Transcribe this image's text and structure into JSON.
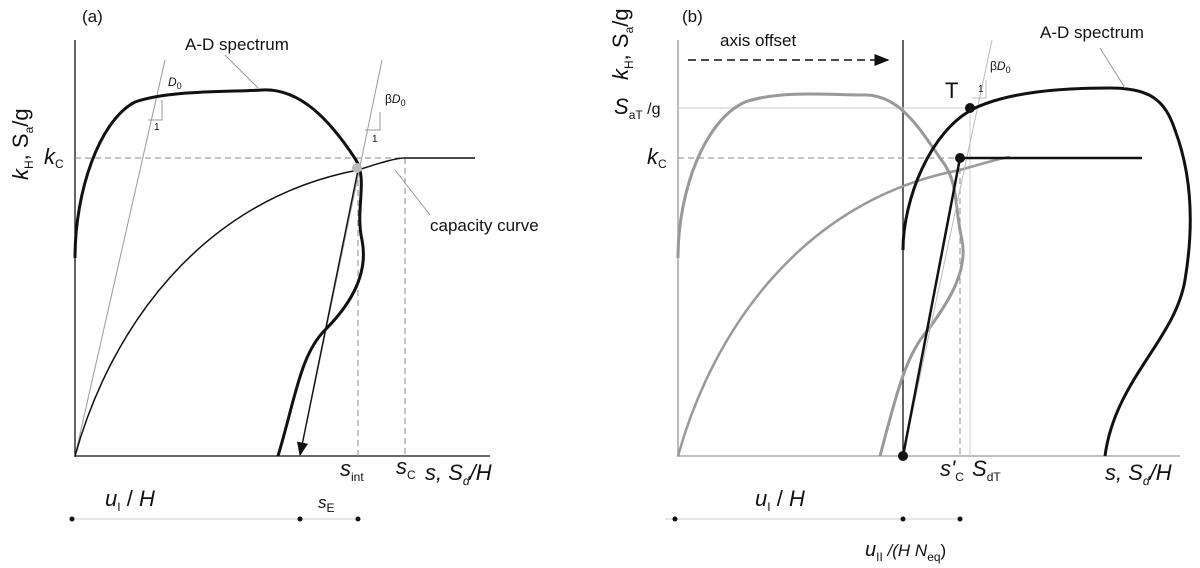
{
  "panel_a": {
    "tag": "(a)",
    "y_label": [
      "k",
      "H",
      ", S",
      "a",
      "/g"
    ],
    "spectrum_label": "A-D spectrum",
    "slope_label": [
      "D",
      "0"
    ],
    "slope_unit": "1",
    "beta_label": [
      "β",
      "D",
      "0"
    ],
    "beta_unit": "1",
    "kc_label": [
      "k",
      "C"
    ],
    "capacity_label": "capacity curve",
    "s_int": [
      "s",
      "int"
    ],
    "s_c": [
      "s",
      "C"
    ],
    "x_label": [
      "s, S",
      "d",
      "/H"
    ],
    "u_label": [
      "u",
      "I",
      " / ",
      "H"
    ],
    "s_e": [
      "s",
      "E"
    ]
  },
  "panel_b": {
    "tag": "(b)",
    "y_label": [
      "k",
      "H",
      ", S",
      "a",
      "/g"
    ],
    "offset_label": "axis offset",
    "point_label": "T",
    "beta_label": [
      "β",
      "D",
      "0"
    ],
    "beta_unit": "1",
    "spectrum_label": "A-D spectrum",
    "sat_label": [
      "S",
      "aT",
      " /g"
    ],
    "kc_label": [
      "k",
      "C"
    ],
    "s_c": [
      "s'",
      "C"
    ],
    "s_dt": [
      "S",
      "dT"
    ],
    "x_label": [
      "s, S",
      "d",
      "/H"
    ],
    "u_label": [
      "u",
      "I",
      " / ",
      "H"
    ],
    "u2_label": [
      "u",
      "II",
      " /(H N",
      "eq",
      ")"
    ]
  }
}
